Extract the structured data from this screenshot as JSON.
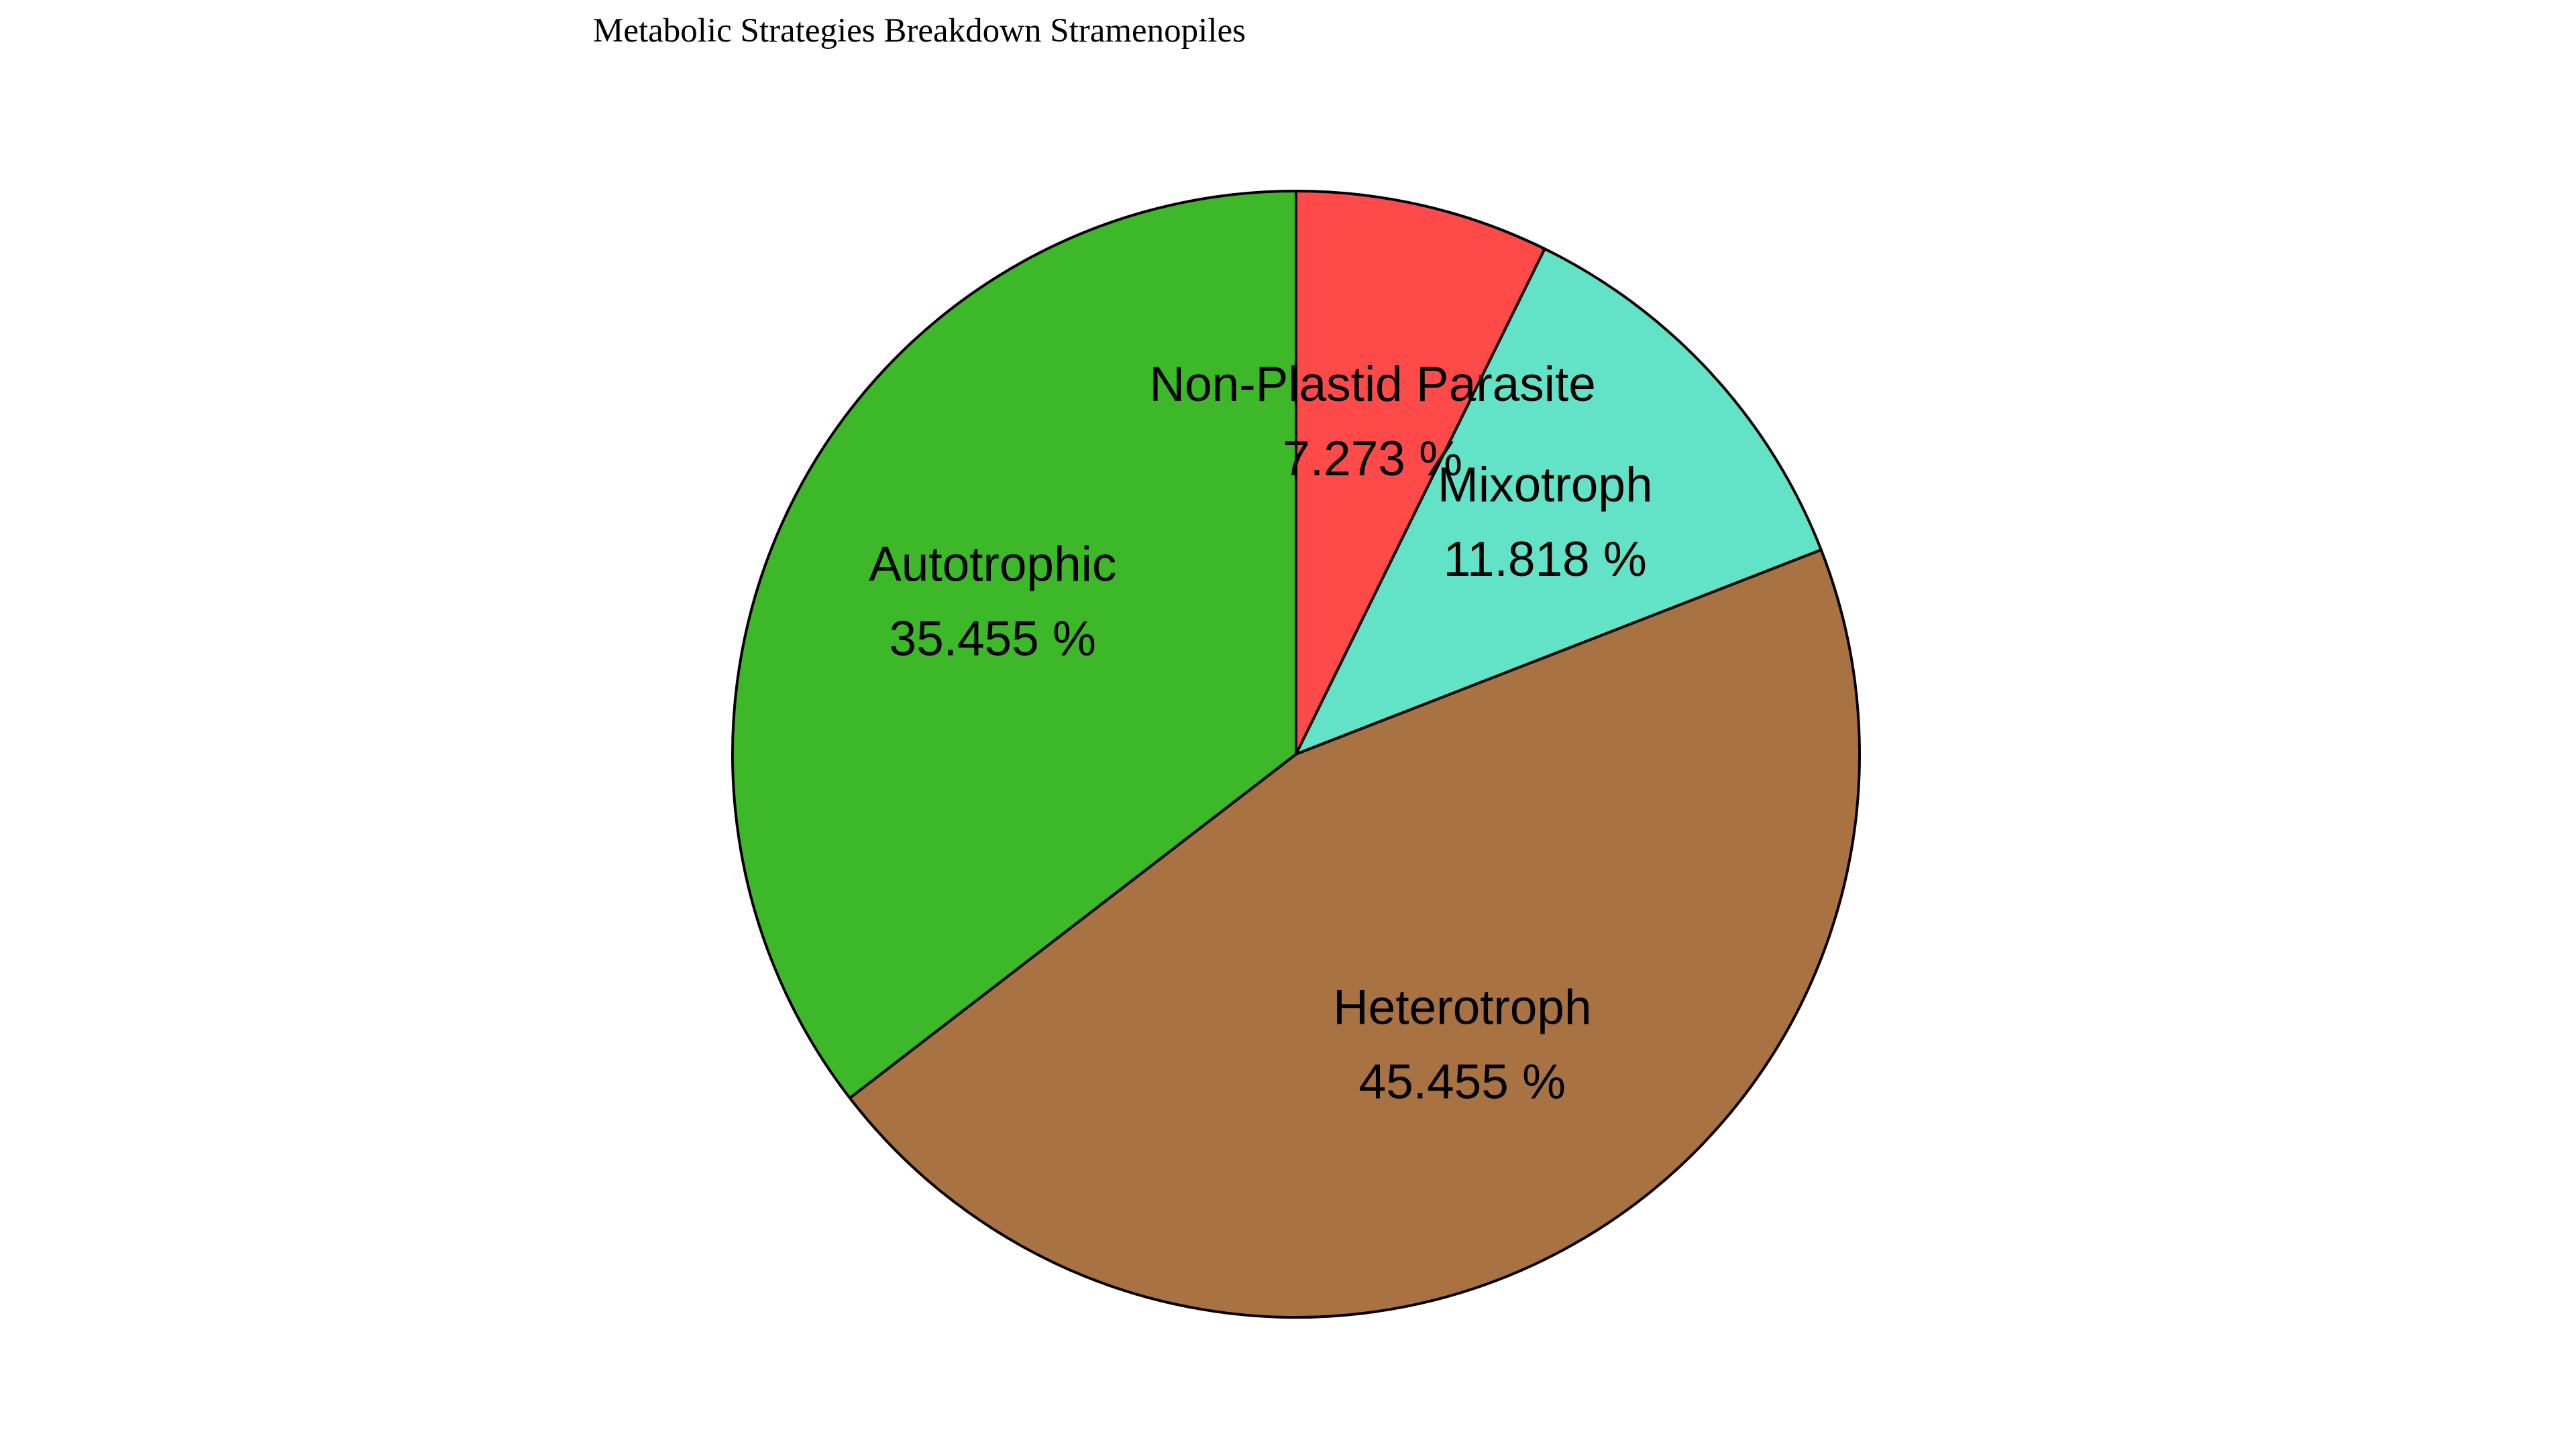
{
  "chart_data": {
    "type": "pie",
    "title": "Metabolic Strategies Breakdown Stramenopiles",
    "start_angle_deg": 90,
    "direction": "clockwise",
    "legend": "none",
    "slices": [
      {
        "label": "Non-Plastid Parasite",
        "value": 7.273,
        "value_text": "7.273 %",
        "color": "#ff4a4a"
      },
      {
        "label": "Mixotroph",
        "value": 11.818,
        "value_text": "11.818 %",
        "color": "#62e3c7"
      },
      {
        "label": "Heterotroph",
        "value": 45.455,
        "value_text": "45.455 %",
        "color": "#a87242"
      },
      {
        "label": "Autotrophic",
        "value": 35.455,
        "value_text": "35.455 %",
        "color": "#3cb829"
      }
    ]
  }
}
